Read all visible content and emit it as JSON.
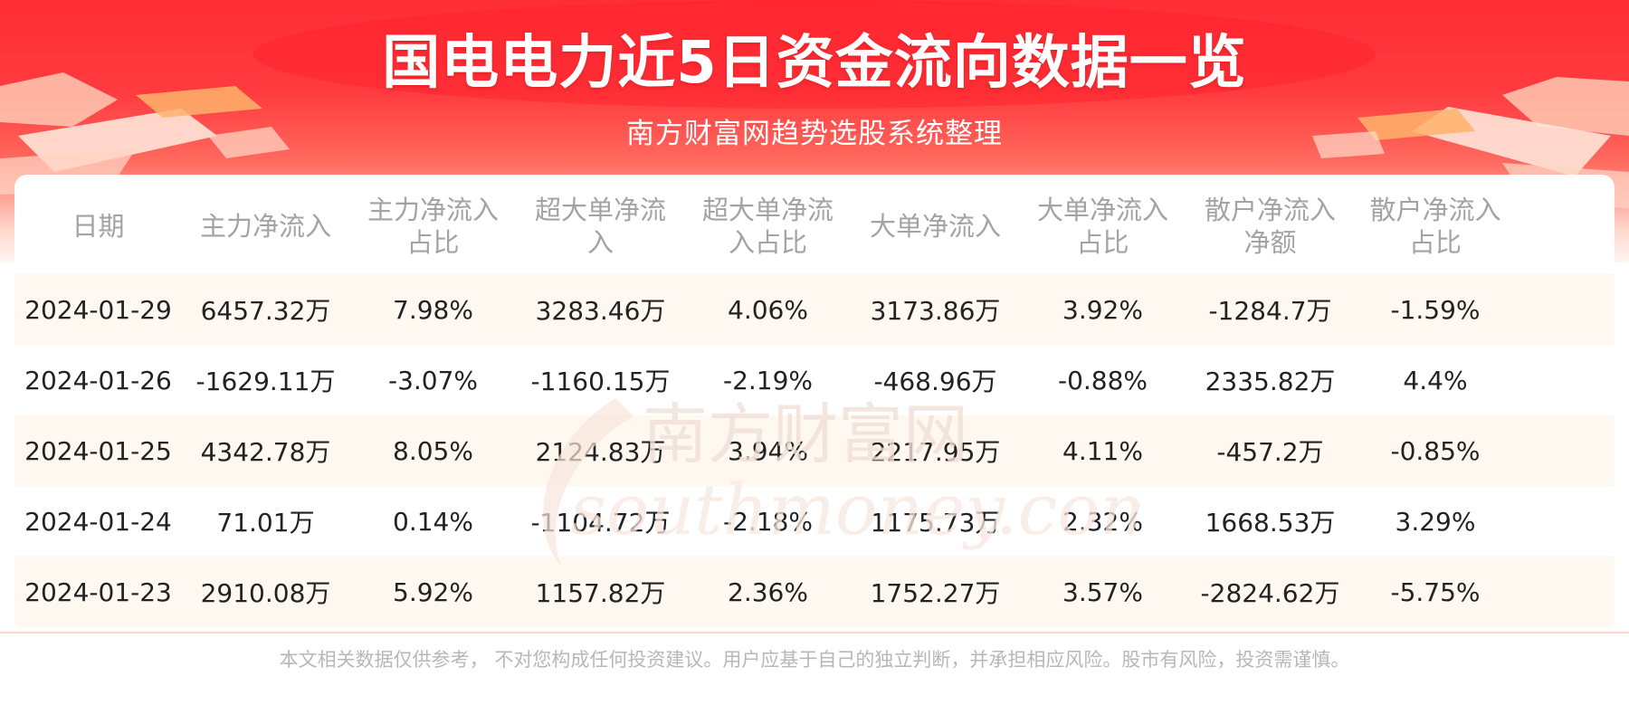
{
  "header": {
    "title": "国电电力近5日资金流向数据一览",
    "subtitle": "南方财富网趋势选股系统整理"
  },
  "table": {
    "columns": [
      [
        "日期"
      ],
      [
        "主力净流入"
      ],
      [
        "主力净流入",
        "占比"
      ],
      [
        "超大单净流",
        "入"
      ],
      [
        "超大单净流",
        "入占比"
      ],
      [
        "大单净流入"
      ],
      [
        "大单净流入",
        "占比"
      ],
      [
        "散户净流入",
        "净额"
      ],
      [
        "散户净流入",
        "占比"
      ]
    ],
    "rows": [
      [
        "2024-01-29",
        "6457.32万",
        "7.98%",
        "3283.46万",
        "4.06%",
        "3173.86万",
        "3.92%",
        "-1284.7万",
        "-1.59%"
      ],
      [
        "2024-01-26",
        "-1629.11万",
        "-3.07%",
        "-1160.15万",
        "-2.19%",
        "-468.96万",
        "-0.88%",
        "2335.82万",
        "4.4%"
      ],
      [
        "2024-01-25",
        "4342.78万",
        "8.05%",
        "2124.83万",
        "3.94%",
        "2217.95万",
        "4.11%",
        "-457.2万",
        "-0.85%"
      ],
      [
        "2024-01-24",
        "71.01万",
        "0.14%",
        "-1104.72万",
        "-2.18%",
        "1175.73万",
        "2.32%",
        "1668.53万",
        "3.29%"
      ],
      [
        "2024-01-23",
        "2910.08万",
        "5.92%",
        "1157.82万",
        "2.36%",
        "1752.27万",
        "3.57%",
        "-2824.62万",
        "-5.75%"
      ]
    ]
  },
  "watermark": {
    "cn": "南方财富网",
    "en": "southmoney.com"
  },
  "footer": {
    "disclaimer": "本文相关数据仅供参考， 不对您构成任何投资建议。用户应基于自己的独立判断，并承担相应风险。股市有风险，投资需谨慎。"
  },
  "colors": {
    "banner_red": "#ff2d36",
    "stripe": "#fff8f1",
    "header_text": "#a3a3a3",
    "cell_text": "#222222",
    "footer_text": "#b7b7b7",
    "watermark": "#f6e7df"
  }
}
